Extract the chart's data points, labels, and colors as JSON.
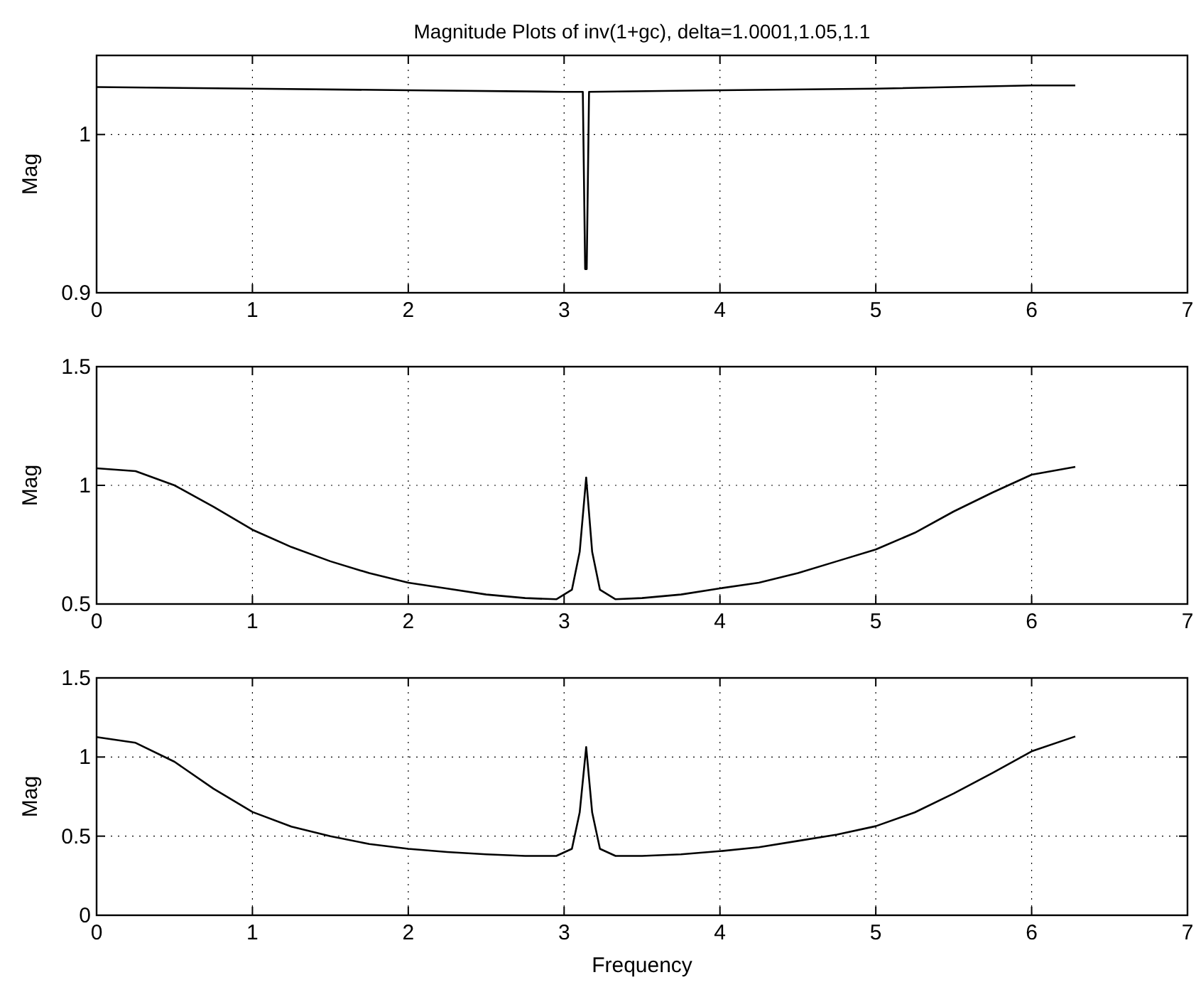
{
  "chart_data": [
    {
      "type": "line",
      "title": "Magnitude Plots of inv(1+gc), delta=1.0001,1.05,1.1",
      "ylabel": "Mag",
      "xlim": [
        0,
        7
      ],
      "xticks": [
        0,
        1,
        2,
        3,
        4,
        5,
        6,
        7
      ],
      "ylim": [
        0.9,
        1.05
      ],
      "yticks": [
        0.9,
        1
      ],
      "grid": true,
      "series": [
        {
          "color": "#000000",
          "x": [
            0,
            1,
            2,
            3,
            3.12,
            3.135,
            3.145,
            3.16,
            4,
            5,
            6,
            6.28
          ],
          "values": [
            1.03,
            1.029,
            1.028,
            1.027,
            1.027,
            0.915,
            0.915,
            1.027,
            1.028,
            1.029,
            1.031,
            1.031
          ]
        }
      ]
    },
    {
      "type": "line",
      "ylabel": "Mag",
      "xlim": [
        0,
        7
      ],
      "xticks": [
        0,
        1,
        2,
        3,
        4,
        5,
        6,
        7
      ],
      "ylim": [
        0.5,
        1.5
      ],
      "yticks": [
        0.5,
        1,
        1.5
      ],
      "grid": true,
      "series": [
        {
          "color": "#000000",
          "x": [
            0,
            0.25,
            0.5,
            0.75,
            1,
            1.25,
            1.5,
            1.75,
            2,
            2.25,
            2.5,
            2.75,
            2.95,
            3.05,
            3.1,
            3.1416,
            3.18,
            3.23,
            3.33,
            3.5,
            3.75,
            4,
            4.25,
            4.5,
            4.75,
            5,
            5.25,
            5.5,
            5.75,
            6,
            6.28
          ],
          "values": [
            1.072,
            1.06,
            1.0,
            0.91,
            0.813,
            0.74,
            0.68,
            0.63,
            0.59,
            0.565,
            0.54,
            0.525,
            0.52,
            0.56,
            0.72,
            1.033,
            0.72,
            0.56,
            0.52,
            0.525,
            0.54,
            0.566,
            0.59,
            0.63,
            0.68,
            0.73,
            0.8,
            0.89,
            0.97,
            1.045,
            1.078
          ]
        }
      ]
    },
    {
      "type": "line",
      "ylabel": "Mag",
      "xlabel": "Frequency",
      "xlim": [
        0,
        7
      ],
      "xticks": [
        0,
        1,
        2,
        3,
        4,
        5,
        6,
        7
      ],
      "ylim": [
        0,
        1.5
      ],
      "yticks": [
        0,
        0.5,
        1,
        1.5
      ],
      "grid": true,
      "series": [
        {
          "color": "#000000",
          "x": [
            0,
            0.25,
            0.5,
            0.75,
            1,
            1.25,
            1.5,
            1.75,
            2,
            2.25,
            2.5,
            2.75,
            2.95,
            3.05,
            3.1,
            3.1416,
            3.18,
            3.23,
            3.33,
            3.5,
            3.75,
            4,
            4.25,
            4.5,
            4.75,
            5,
            5.25,
            5.5,
            5.75,
            6,
            6.28
          ],
          "values": [
            1.126,
            1.09,
            0.97,
            0.8,
            0.653,
            0.56,
            0.5,
            0.45,
            0.42,
            0.4,
            0.385,
            0.375,
            0.375,
            0.42,
            0.65,
            1.063,
            0.65,
            0.42,
            0.375,
            0.375,
            0.385,
            0.405,
            0.43,
            0.47,
            0.51,
            0.563,
            0.65,
            0.77,
            0.9,
            1.036,
            1.13
          ]
        }
      ]
    }
  ]
}
